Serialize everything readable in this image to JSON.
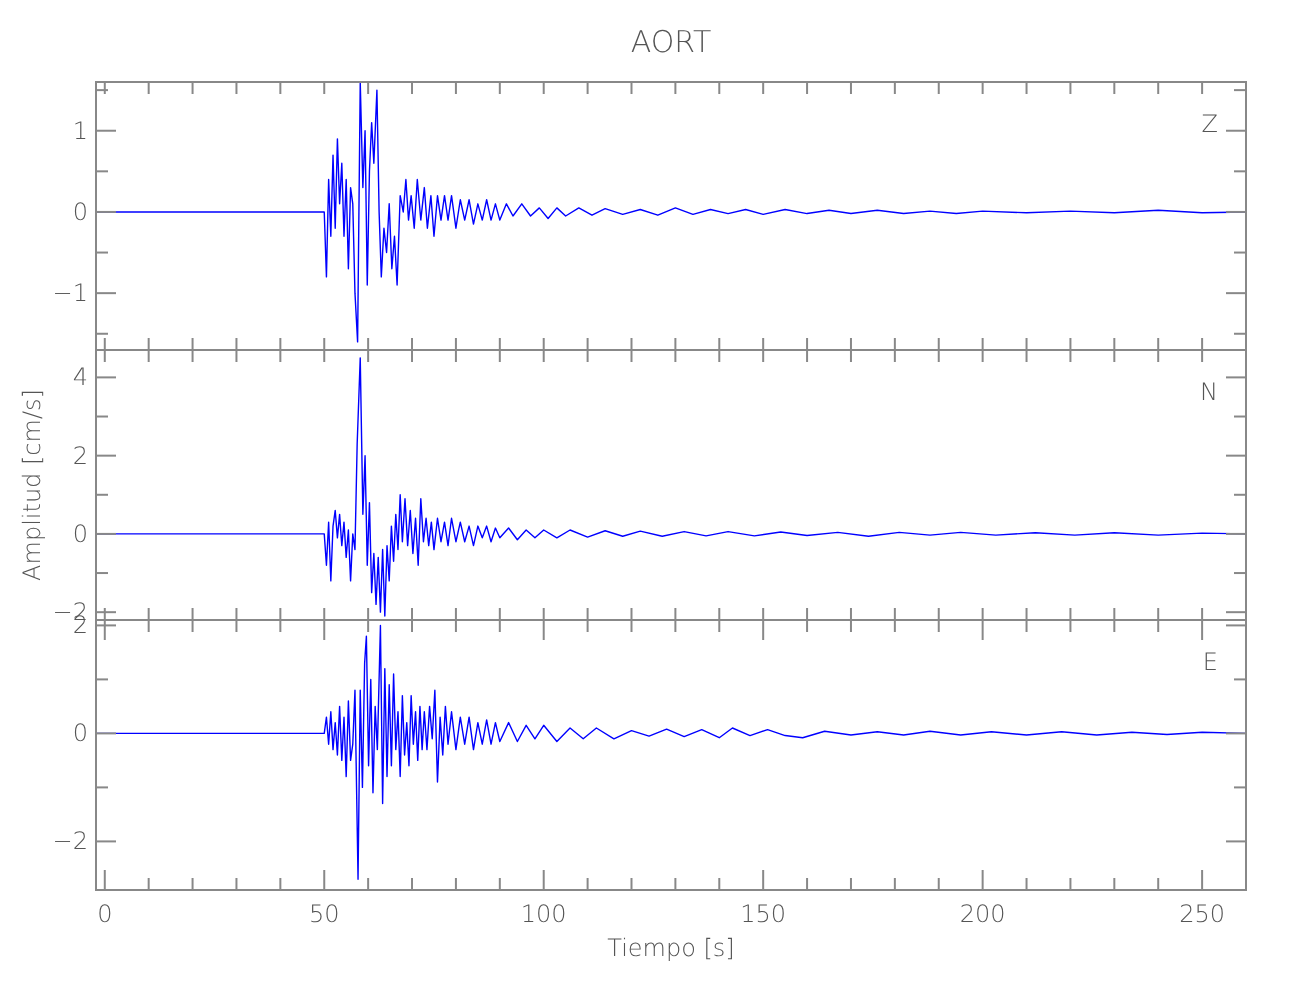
{
  "chart_data": [
    {
      "type": "line",
      "title": "AORT",
      "annotations": [
        "Z"
      ],
      "tick_labels": "y",
      "xlim": [
        -2,
        260
      ],
      "ylim": [
        -1.7,
        1.6
      ],
      "xticks": [
        {
          "value": 0,
          "label": null
        },
        {
          "value": 10,
          "label": null
        },
        {
          "value": 20,
          "label": null
        },
        {
          "value": 30,
          "label": null
        },
        {
          "value": 40,
          "label": null
        },
        {
          "value": 50,
          "label": null
        },
        {
          "value": 60,
          "label": null
        },
        {
          "value": 70,
          "label": null
        },
        {
          "value": 80,
          "label": null
        },
        {
          "value": 90,
          "label": null
        },
        {
          "value": 100,
          "label": null
        },
        {
          "value": 110,
          "label": null
        },
        {
          "value": 120,
          "label": null
        },
        {
          "value": 130,
          "label": null
        },
        {
          "value": 140,
          "label": null
        },
        {
          "value": 150,
          "label": null
        },
        {
          "value": 160,
          "label": null
        },
        {
          "value": 170,
          "label": null
        },
        {
          "value": 180,
          "label": null
        },
        {
          "value": 190,
          "label": null
        },
        {
          "value": 200,
          "label": null
        },
        {
          "value": 210,
          "label": null
        },
        {
          "value": 220,
          "label": null
        },
        {
          "value": 230,
          "label": null
        },
        {
          "value": 240,
          "label": null
        },
        {
          "value": 250,
          "label": null
        }
      ],
      "yticks": [
        {
          "value": -1.5,
          "label": null
        },
        -1,
        {
          "value": -0.5,
          "label": null
        },
        0,
        {
          "value": 0.5,
          "label": null
        },
        1,
        {
          "value": 1.5,
          "label": null
        }
      ],
      "grid": false,
      "marker": "none",
      "line_style": "solid",
      "series": [
        {
          "color": "#0000ff",
          "x": [
            -2,
            50,
            50.5,
            51,
            51.5,
            52,
            52.5,
            53,
            53.5,
            54,
            54.5,
            55,
            55.5,
            56,
            56.5,
            57,
            57.6,
            58.2,
            58.8,
            59.3,
            59.8,
            60.3,
            60.8,
            61.3,
            62,
            62.5,
            63,
            63.6,
            64.2,
            64.8,
            65.4,
            66,
            66.6,
            67.3,
            68,
            68.6,
            69.2,
            69.8,
            70.5,
            71.2,
            72,
            72.8,
            73.5,
            74.3,
            75,
            75.8,
            76.6,
            77.4,
            78.2,
            79,
            80,
            81,
            82,
            83,
            84,
            85,
            86,
            87,
            88,
            89,
            90,
            91.5,
            93,
            95,
            97,
            99,
            101,
            103,
            105,
            108,
            111,
            114,
            118,
            122,
            126,
            130,
            134,
            138,
            142,
            146,
            150,
            155,
            160,
            165,
            170,
            176,
            182,
            188,
            194,
            200,
            210,
            220,
            230,
            240,
            250,
            260
          ],
          "values": [
            0,
            0,
            -0.8,
            0.4,
            -0.3,
            0.7,
            -0.2,
            0.9,
            0.1,
            0.6,
            -0.3,
            0.4,
            -0.7,
            0.3,
            0.1,
            -1.0,
            -1.6,
            1.6,
            0.3,
            1.0,
            -0.9,
            0.5,
            1.1,
            0.6,
            1.5,
            0.0,
            -0.8,
            -0.2,
            -0.5,
            0.1,
            -0.7,
            -0.3,
            -0.9,
            0.2,
            0.0,
            0.4,
            -0.1,
            0.2,
            -0.2,
            0.4,
            -0.1,
            0.3,
            -0.2,
            0.2,
            -0.3,
            0.2,
            -0.1,
            0.2,
            -0.1,
            0.2,
            -0.2,
            0.15,
            -0.1,
            0.15,
            -0.15,
            0.1,
            -0.1,
            0.15,
            -0.1,
            0.1,
            -0.1,
            0.1,
            -0.05,
            0.1,
            -0.05,
            0.05,
            -0.08,
            0.05,
            -0.05,
            0.05,
            -0.04,
            0.04,
            -0.03,
            0.03,
            -0.04,
            0.05,
            -0.03,
            0.03,
            -0.02,
            0.03,
            -0.03,
            0.03,
            -0.02,
            0.02,
            -0.02,
            0.02,
            -0.02,
            0.01,
            -0.02,
            0.01,
            -0.01,
            0.01,
            -0.01,
            0.02,
            -0.01,
            0
          ]
        }
      ]
    },
    {
      "type": "line",
      "ylabel": "Amplitud [cm/s]",
      "annotations": [
        "N"
      ],
      "tick_labels": "y",
      "xlim": [
        -2,
        260
      ],
      "ylim": [
        -2.2,
        4.7
      ],
      "xticks": [
        {
          "value": 0,
          "label": null
        },
        {
          "value": 10,
          "label": null
        },
        {
          "value": 20,
          "label": null
        },
        {
          "value": 30,
          "label": null
        },
        {
          "value": 40,
          "label": null
        },
        {
          "value": 50,
          "label": null
        },
        {
          "value": 60,
          "label": null
        },
        {
          "value": 70,
          "label": null
        },
        {
          "value": 80,
          "label": null
        },
        {
          "value": 90,
          "label": null
        },
        {
          "value": 100,
          "label": null
        },
        {
          "value": 110,
          "label": null
        },
        {
          "value": 120,
          "label": null
        },
        {
          "value": 130,
          "label": null
        },
        {
          "value": 140,
          "label": null
        },
        {
          "value": 150,
          "label": null
        },
        {
          "value": 160,
          "label": null
        },
        {
          "value": 170,
          "label": null
        },
        {
          "value": 180,
          "label": null
        },
        {
          "value": 190,
          "label": null
        },
        {
          "value": 200,
          "label": null
        },
        {
          "value": 210,
          "label": null
        },
        {
          "value": 220,
          "label": null
        },
        {
          "value": 230,
          "label": null
        },
        {
          "value": 240,
          "label": null
        },
        {
          "value": 250,
          "label": null
        }
      ],
      "yticks": [
        -2,
        {
          "value": -1,
          "label": null
        },
        0,
        {
          "value": 1,
          "label": null
        },
        2,
        {
          "value": 3,
          "label": null
        },
        4
      ],
      "grid": false,
      "marker": "none",
      "line_style": "solid",
      "series": [
        {
          "color": "#0000ff",
          "x": [
            -2,
            50,
            50.5,
            51,
            51.5,
            52,
            52.5,
            53,
            53.5,
            54,
            54.5,
            55,
            55.5,
            56,
            56.5,
            57,
            57.5,
            58.2,
            58.8,
            59.3,
            59.8,
            60.3,
            60.8,
            61.3,
            61.8,
            62.3,
            62.8,
            63.3,
            63.8,
            64.3,
            64.8,
            65.3,
            65.8,
            66.3,
            66.8,
            67.3,
            67.8,
            68.4,
            69,
            69.6,
            70.2,
            70.8,
            71.4,
            72,
            72.6,
            73.2,
            73.8,
            74.4,
            75,
            75.8,
            76.6,
            77.4,
            78.2,
            79,
            80,
            81,
            82,
            83,
            84,
            85,
            86,
            87,
            88,
            89,
            90,
            92,
            94,
            96,
            98,
            100,
            103,
            106,
            110,
            114,
            118,
            122,
            127,
            132,
            137,
            142,
            148,
            154,
            160,
            167,
            174,
            181,
            188,
            195,
            203,
            212,
            221,
            230,
            240,
            250,
            260
          ],
          "values": [
            0,
            0,
            -0.8,
            0.3,
            -1.2,
            0.2,
            0.6,
            -0.1,
            0.5,
            -0.3,
            0.3,
            -0.6,
            0.1,
            -1.2,
            0.0,
            -0.4,
            2.3,
            4.5,
            0.5,
            2.0,
            -0.8,
            0.8,
            -1.5,
            -0.5,
            -1.8,
            -0.6,
            -2.0,
            -0.4,
            -2.1,
            -0.3,
            -1.2,
            0.2,
            -0.7,
            0.5,
            -0.4,
            1.0,
            -0.2,
            0.9,
            -0.3,
            0.6,
            -0.5,
            0.4,
            -0.8,
            0.9,
            -0.2,
            0.4,
            -0.3,
            0.3,
            -0.4,
            0.4,
            -0.2,
            0.3,
            -0.3,
            0.4,
            -0.2,
            0.3,
            -0.2,
            0.2,
            -0.3,
            0.2,
            -0.1,
            0.2,
            -0.2,
            0.15,
            -0.1,
            0.15,
            -0.15,
            0.1,
            -0.1,
            0.1,
            -0.1,
            0.1,
            -0.08,
            0.08,
            -0.06,
            0.07,
            -0.06,
            0.06,
            -0.05,
            0.06,
            -0.05,
            0.05,
            -0.04,
            0.04,
            -0.06,
            0.04,
            -0.03,
            0.04,
            -0.03,
            0.03,
            -0.03,
            0.03,
            -0.03,
            0.02,
            0
          ]
        }
      ]
    },
    {
      "type": "line",
      "xlabel": "Tiempo [s]",
      "annotations": [
        "E"
      ],
      "xlim": [
        -2,
        260
      ],
      "ylim": [
        -2.9,
        2.1
      ],
      "xticks": [
        0,
        {
          "value": 10,
          "label": null
        },
        {
          "value": 20,
          "label": null
        },
        {
          "value": 30,
          "label": null
        },
        {
          "value": 40,
          "label": null
        },
        50,
        {
          "value": 60,
          "label": null
        },
        {
          "value": 70,
          "label": null
        },
        {
          "value": 80,
          "label": null
        },
        {
          "value": 90,
          "label": null
        },
        100,
        {
          "value": 110,
          "label": null
        },
        {
          "value": 120,
          "label": null
        },
        {
          "value": 130,
          "label": null
        },
        {
          "value": 140,
          "label": null
        },
        150,
        {
          "value": 160,
          "label": null
        },
        {
          "value": 170,
          "label": null
        },
        {
          "value": 180,
          "label": null
        },
        {
          "value": 190,
          "label": null
        },
        200,
        {
          "value": 210,
          "label": null
        },
        {
          "value": 220,
          "label": null
        },
        {
          "value": 230,
          "label": null
        },
        {
          "value": 240,
          "label": null
        },
        250
      ],
      "yticks": [
        -2,
        {
          "value": -1,
          "label": null
        },
        0,
        {
          "value": 1,
          "label": null
        },
        2
      ],
      "grid": false,
      "marker": "none",
      "line_style": "solid",
      "series": [
        {
          "color": "#0000ff",
          "x": [
            -2,
            50,
            50.5,
            51,
            51.5,
            52,
            52.5,
            53,
            53.5,
            54,
            54.5,
            55,
            55.5,
            56,
            56.5,
            57,
            57.7,
            58.2,
            58.7,
            59.2,
            59.6,
            60.1,
            60.6,
            61.1,
            61.6,
            62.1,
            62.8,
            63.3,
            63.8,
            64.3,
            64.8,
            65.3,
            65.8,
            66.3,
            66.8,
            67.3,
            67.8,
            68.3,
            68.8,
            69.3,
            69.8,
            70.3,
            70.8,
            71.3,
            71.8,
            72.3,
            72.8,
            73.4,
            74,
            74.6,
            75.2,
            75.8,
            76.4,
            77,
            77.6,
            78.2,
            79,
            80,
            81,
            82,
            83,
            84,
            85,
            86,
            87,
            88,
            89,
            90,
            92,
            94,
            96,
            98,
            100,
            103,
            106,
            109,
            112,
            116,
            120,
            124,
            128,
            132,
            136,
            140,
            143,
            147,
            151,
            155,
            159,
            164,
            170,
            176,
            182,
            188,
            195,
            202,
            210,
            218,
            226,
            234,
            242,
            250,
            260
          ],
          "values": [
            0,
            0,
            0.3,
            -0.2,
            0.4,
            -0.3,
            0.2,
            -0.4,
            0.5,
            -0.5,
            0.3,
            -0.8,
            0.6,
            -0.5,
            -0.2,
            0.8,
            -2.7,
            0.8,
            -1.0,
            1.3,
            1.8,
            -0.6,
            1.0,
            -1.1,
            0.5,
            -0.3,
            2.0,
            -1.3,
            1.2,
            -0.8,
            0.9,
            -0.6,
            1.1,
            -0.3,
            0.4,
            -0.8,
            0.7,
            -0.4,
            0.2,
            -0.6,
            0.7,
            -0.2,
            0.4,
            -0.5,
            0.5,
            -0.3,
            0.4,
            -0.3,
            0.5,
            -0.1,
            0.8,
            -0.9,
            0.3,
            -0.4,
            0.5,
            -0.2,
            0.4,
            -0.3,
            0.3,
            -0.2,
            0.3,
            -0.3,
            0.2,
            -0.2,
            0.25,
            -0.2,
            0.2,
            -0.15,
            0.2,
            -0.15,
            0.15,
            -0.1,
            0.15,
            -0.15,
            0.1,
            -0.1,
            0.1,
            -0.1,
            0.05,
            -0.05,
            0.08,
            -0.06,
            0.07,
            -0.08,
            0.1,
            -0.04,
            0.07,
            -0.04,
            -0.08,
            0.04,
            -0.03,
            0.03,
            -0.03,
            0.04,
            -0.03,
            0.03,
            -0.03,
            0.03,
            -0.03,
            0.02,
            -0.02,
            0.02,
            0
          ]
        }
      ]
    }
  ]
}
